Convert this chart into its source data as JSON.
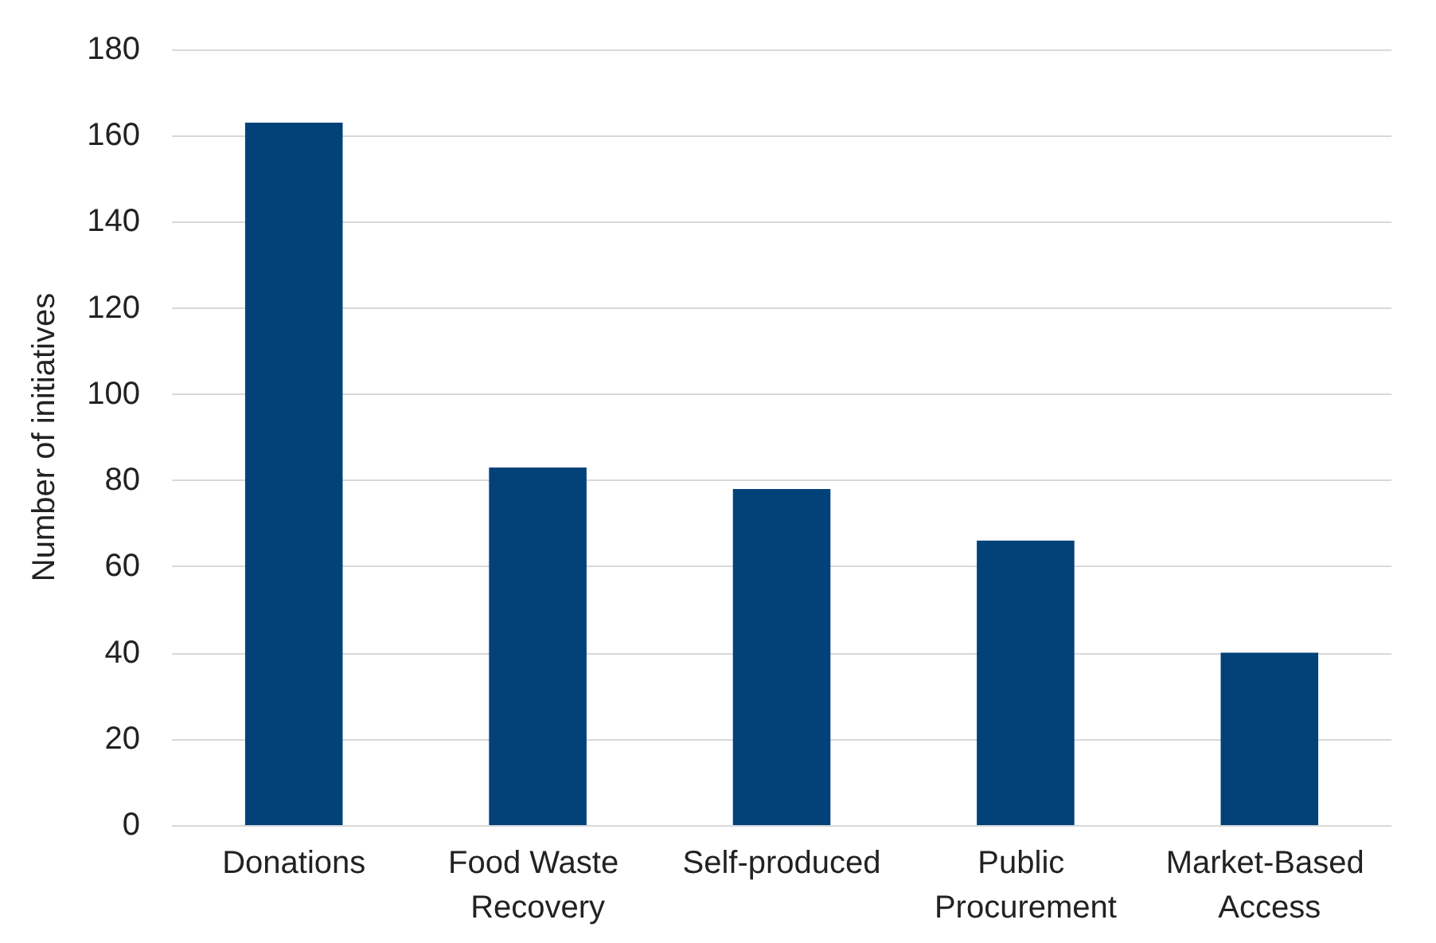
{
  "chart_data": {
    "type": "bar",
    "ylabel": "Number of initiatives",
    "categories": [
      "Donations",
      "Food Waste Recovery",
      "Self-produced",
      "Public Procurement",
      "Market-Based Access"
    ],
    "values": [
      163,
      83,
      78,
      66,
      40
    ],
    "color": "#024279",
    "ylim": [
      0,
      180
    ],
    "yticks": [
      0,
      20,
      40,
      60,
      80,
      100,
      120,
      140,
      160,
      180
    ],
    "grid": "y"
  }
}
